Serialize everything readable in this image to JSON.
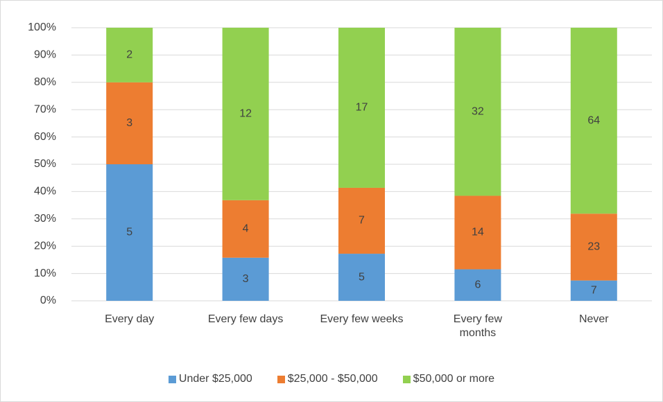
{
  "chart_data": {
    "type": "bar",
    "stacked": "percent",
    "categories": [
      "Every day",
      "Every few days",
      "Every few weeks",
      "Every few\nmonths",
      "Never"
    ],
    "series": [
      {
        "name": "Under $25,000",
        "color": "#5b9bd5",
        "values": [
          5,
          3,
          5,
          6,
          7
        ]
      },
      {
        "name": "$25,000 - $50,000",
        "color": "#ed7d31",
        "values": [
          3,
          4,
          7,
          14,
          23
        ]
      },
      {
        "name": "$50,000 or more",
        "color": "#92d050",
        "values": [
          2,
          12,
          17,
          32,
          64
        ]
      }
    ],
    "ylim": [
      0,
      100
    ],
    "yticks": [
      {
        "value": 0,
        "label": "0%"
      },
      {
        "value": 10,
        "label": "10%"
      },
      {
        "value": 20,
        "label": "20%"
      },
      {
        "value": 30,
        "label": "30%"
      },
      {
        "value": 40,
        "label": "40%"
      },
      {
        "value": 50,
        "label": "50%"
      },
      {
        "value": 60,
        "label": "60%"
      },
      {
        "value": 70,
        "label": "70%"
      },
      {
        "value": 80,
        "label": "80%"
      },
      {
        "value": 90,
        "label": "90%"
      },
      {
        "value": 100,
        "label": "100%"
      }
    ],
    "grid": true,
    "legend": "bottom"
  }
}
